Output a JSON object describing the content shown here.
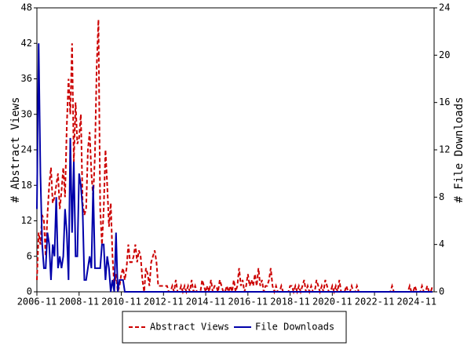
{
  "chart_data": {
    "type": "line",
    "y_label": "# Abstract Views",
    "y2_label": "# File Downloads",
    "x": [
      "2006-11",
      "2006-12",
      "2007-01",
      "2007-02",
      "2007-03",
      "2007-04",
      "2007-05",
      "2007-06",
      "2007-07",
      "2007-08",
      "2007-09",
      "2007-10",
      "2007-11",
      "2007-12",
      "2008-01",
      "2008-02",
      "2008-03",
      "2008-04",
      "2008-05",
      "2008-06",
      "2008-07",
      "2008-08",
      "2008-09",
      "2008-10",
      "2008-11",
      "2008-12",
      "2009-01",
      "2009-02",
      "2009-03",
      "2009-04",
      "2009-05",
      "2009-06",
      "2009-07",
      "2009-08",
      "2009-09",
      "2009-10",
      "2009-11",
      "2009-12",
      "2010-01",
      "2010-02",
      "2010-03",
      "2010-04",
      "2010-05",
      "2010-06",
      "2010-07",
      "2010-08",
      "2010-09",
      "2010-10",
      "2010-11",
      "2010-12",
      "2011-01",
      "2011-02",
      "2011-03",
      "2011-04",
      "2011-05",
      "2011-06",
      "2011-07",
      "2011-08",
      "2011-09",
      "2011-10",
      "2011-11",
      "2011-12",
      "2012-01",
      "2012-02",
      "2012-03",
      "2012-04",
      "2012-05",
      "2012-06",
      "2012-07",
      "2012-08",
      "2012-09",
      "2012-10",
      "2012-11",
      "2012-12",
      "2013-01",
      "2013-02",
      "2013-03",
      "2013-04",
      "2013-05",
      "2013-06",
      "2013-07",
      "2013-08",
      "2013-09",
      "2013-10",
      "2013-11",
      "2013-12",
      "2014-01",
      "2014-02",
      "2014-03",
      "2014-04",
      "2014-05",
      "2014-06",
      "2014-07",
      "2014-08",
      "2014-09",
      "2014-10",
      "2014-11",
      "2014-12",
      "2015-01",
      "2015-02",
      "2015-03",
      "2015-04",
      "2015-05",
      "2015-06",
      "2015-07",
      "2015-08",
      "2015-09",
      "2015-10",
      "2015-11",
      "2015-12",
      "2016-01",
      "2016-02",
      "2016-03",
      "2016-04",
      "2016-05",
      "2016-06",
      "2016-07",
      "2016-08",
      "2016-09",
      "2016-10",
      "2016-11",
      "2016-12",
      "2017-01",
      "2017-02",
      "2017-03",
      "2017-04",
      "2017-05",
      "2017-06",
      "2017-07",
      "2017-08",
      "2017-09",
      "2017-10",
      "2017-11",
      "2017-12",
      "2018-01",
      "2018-02",
      "2018-03",
      "2018-04",
      "2018-05",
      "2018-06",
      "2018-07",
      "2018-08",
      "2018-09",
      "2018-10",
      "2018-11",
      "2018-12",
      "2019-01",
      "2019-02",
      "2019-03",
      "2019-04",
      "2019-05",
      "2019-06",
      "2019-07",
      "2019-08",
      "2019-09",
      "2019-10",
      "2019-11",
      "2019-12",
      "2020-01",
      "2020-02",
      "2020-03",
      "2020-04",
      "2020-05",
      "2020-06",
      "2020-07",
      "2020-08",
      "2020-09",
      "2020-10",
      "2020-11",
      "2020-12",
      "2021-01",
      "2021-02",
      "2021-03",
      "2021-04",
      "2021-05",
      "2021-06",
      "2021-07",
      "2021-08",
      "2021-09",
      "2021-10",
      "2021-11",
      "2021-12",
      "2022-01",
      "2022-02",
      "2022-03",
      "2022-04",
      "2022-05",
      "2022-06",
      "2022-07",
      "2022-08",
      "2022-09",
      "2022-10",
      "2022-11",
      "2022-12",
      "2023-01",
      "2023-02",
      "2023-03",
      "2023-04",
      "2023-05",
      "2023-06",
      "2023-07",
      "2023-08",
      "2023-09",
      "2023-10",
      "2023-11",
      "2023-12",
      "2024-01",
      "2024-02",
      "2024-03",
      "2024-04",
      "2024-05",
      "2024-06",
      "2024-07",
      "2024-08",
      "2024-09",
      "2024-10",
      "2024-11",
      "2024-12",
      "2025-01",
      "2025-02",
      "2025-03",
      "2025-04",
      "2025-05",
      "2025-06",
      "2025-07",
      "2025-08"
    ],
    "xticks": [
      "2006-11",
      "2008-11",
      "2010-11",
      "2012-11",
      "2014-11",
      "2016-11",
      "2018-11",
      "2020-11",
      "2022-11",
      "2024-11"
    ],
    "ylim": [
      0,
      48
    ],
    "yticks": [
      0,
      6,
      12,
      18,
      24,
      30,
      36,
      42,
      48
    ],
    "y2lim": [
      0,
      24
    ],
    "y2ticks": [
      0,
      4,
      8,
      12,
      16,
      20,
      24
    ],
    "legend": "bottom",
    "series": [
      {
        "name": "Abstract Views",
        "color": "#cc0000",
        "dash": true,
        "values": [
          2,
          10,
          8,
          13,
          12,
          6,
          13,
          18,
          21,
          15,
          16,
          18,
          20,
          14,
          17,
          21,
          16,
          28,
          36,
          30,
          42,
          22,
          32,
          25,
          26,
          30,
          15,
          13,
          14,
          24,
          27,
          20,
          16,
          23,
          38,
          46,
          14,
          8,
          14,
          24,
          18,
          11,
          15,
          6,
          1,
          3,
          0,
          1,
          3,
          4,
          2,
          4,
          8,
          5,
          5,
          6,
          8,
          5,
          7,
          6,
          2,
          0,
          4,
          3,
          1,
          5,
          6,
          7,
          5,
          1,
          1,
          1,
          1,
          1,
          1,
          0,
          0,
          1,
          0,
          2,
          0,
          0,
          1,
          0,
          1,
          0,
          1,
          0,
          2,
          0,
          1,
          0,
          0,
          0,
          2,
          1,
          0,
          1,
          0,
          2,
          0,
          1,
          1,
          0,
          2,
          1,
          0,
          0,
          1,
          0,
          1,
          0,
          2,
          0,
          1,
          4,
          1,
          2,
          0,
          1,
          3,
          1,
          2,
          1,
          3,
          1,
          4,
          1,
          2,
          0,
          1,
          1,
          2,
          4,
          1,
          0,
          1,
          0,
          0,
          1,
          0,
          0,
          0,
          0,
          1,
          1,
          0,
          1,
          0,
          1,
          0,
          1,
          2,
          0,
          1,
          0,
          1,
          0,
          0,
          2,
          1,
          0,
          1,
          0,
          2,
          1,
          0,
          0,
          1,
          0,
          1,
          0,
          2,
          0,
          0,
          0,
          1,
          0,
          0,
          1,
          0,
          0,
          1,
          0,
          0,
          0,
          0,
          0,
          0,
          0,
          0,
          0,
          0,
          0,
          0,
          0,
          0,
          0,
          0,
          0,
          0,
          0,
          1,
          0,
          0,
          0,
          0,
          0,
          0,
          0,
          0,
          0,
          1,
          0,
          0,
          1,
          0,
          0,
          0,
          1,
          0,
          0,
          1,
          0,
          0,
          1
        ]
      },
      {
        "name": "File Downloads",
        "color": "#0000aa",
        "axis": "y2",
        "values": [
          7,
          21,
          10,
          4,
          2,
          2,
          5,
          4,
          1,
          4,
          3,
          8,
          2,
          3,
          2,
          3,
          7,
          5,
          1,
          13,
          5,
          11,
          3,
          3,
          10,
          9,
          7,
          1,
          1,
          2,
          3,
          2,
          9,
          2,
          2,
          2,
          2,
          4,
          4,
          1,
          3,
          2,
          0,
          1,
          0,
          5,
          0,
          1,
          1,
          1,
          0,
          0,
          0,
          0,
          0,
          0,
          0,
          0,
          0,
          0,
          0,
          0,
          0,
          0,
          0,
          0,
          0,
          0,
          0,
          0,
          0,
          0,
          0,
          0,
          0,
          0,
          0,
          0,
          0,
          0,
          0,
          0,
          0,
          0,
          0,
          0,
          0,
          0,
          0,
          0,
          0,
          0,
          0,
          0,
          0,
          0,
          0,
          0,
          0,
          0,
          0,
          0,
          0,
          0,
          0,
          0,
          0,
          0,
          0,
          0,
          0,
          0,
          0,
          0,
          0,
          0,
          0,
          0,
          0,
          0,
          0,
          0,
          0,
          0,
          0,
          0,
          0,
          0,
          0,
          0,
          0,
          0,
          0,
          0,
          0,
          0,
          0,
          0,
          0,
          0,
          0,
          0,
          0,
          0,
          0,
          0,
          0,
          0,
          0,
          0,
          0,
          0,
          0,
          0,
          0,
          0,
          0,
          0,
          0,
          0,
          0,
          0,
          0,
          0,
          0,
          0,
          0,
          0,
          0,
          0,
          0,
          0,
          0,
          0,
          0,
          0,
          0,
          0,
          0,
          0,
          0,
          0,
          0,
          0,
          0,
          0,
          0,
          0,
          0,
          0,
          0,
          0,
          0,
          0,
          0,
          0,
          0,
          0,
          0,
          0,
          0,
          0,
          0,
          0,
          0,
          0,
          0,
          0,
          0,
          0,
          0,
          0,
          0,
          0,
          0,
          0,
          0,
          0,
          0,
          0,
          0,
          0,
          0,
          0,
          0,
          0
        ]
      }
    ]
  }
}
